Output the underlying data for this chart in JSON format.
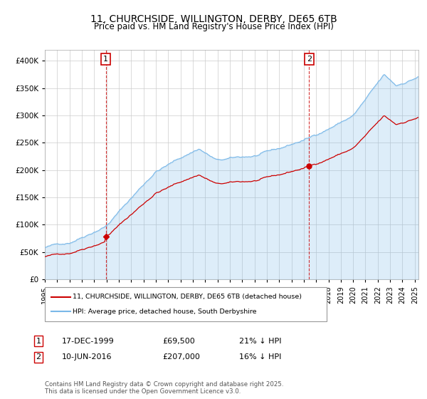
{
  "title": "11, CHURCHSIDE, WILLINGTON, DERBY, DE65 6TB",
  "subtitle": "Price paid vs. HM Land Registry's House Price Index (HPI)",
  "hpi_color": "#7ab8e8",
  "hpi_fill": "#ddeeff",
  "price_color": "#cc0000",
  "ylim": [
    0,
    420000
  ],
  "yticks": [
    0,
    50000,
    100000,
    150000,
    200000,
    250000,
    300000,
    350000,
    400000
  ],
  "legend_label_price": "11, CHURCHSIDE, WILLINGTON, DERBY, DE65 6TB (detached house)",
  "legend_label_hpi": "HPI: Average price, detached house, South Derbyshire",
  "annotation1_label": "1",
  "annotation1_date": "17-DEC-1999",
  "annotation1_price": 69500,
  "annotation1_hpi_text": "21% ↓ HPI",
  "annotation1_year": 1999.96,
  "annotation2_label": "2",
  "annotation2_date": "10-JUN-2016",
  "annotation2_price": 207000,
  "annotation2_hpi_text": "16% ↓ HPI",
  "annotation2_year": 2016.44,
  "footer": "Contains HM Land Registry data © Crown copyright and database right 2025.\nThis data is licensed under the Open Government Licence v3.0.",
  "background_color": "#ffffff",
  "grid_color": "#cccccc",
  "start_year": 1995.0,
  "end_year": 2025.3
}
